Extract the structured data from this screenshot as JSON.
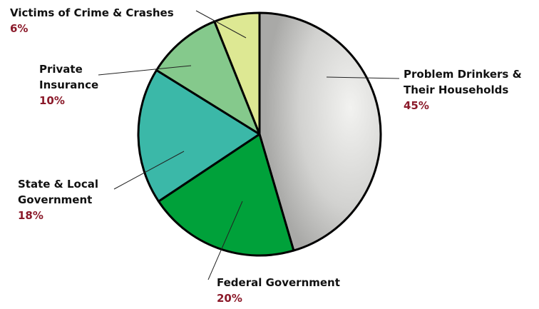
{
  "chart_data": {
    "type": "pie",
    "categories": [
      "Problem Drinkers & Their Households",
      "Federal Government",
      "State & Local Government",
      "Private Insurance",
      "Victims of Crime & Crashes"
    ],
    "values": [
      45,
      20,
      18,
      10,
      6
    ],
    "value_labels": [
      "45%",
      "20%",
      "18%",
      "10%",
      "6%"
    ],
    "colors": [
      "#d4d4d2",
      "#00a13a",
      "#3bb8a8",
      "#85c98c",
      "#dde893"
    ]
  }
}
